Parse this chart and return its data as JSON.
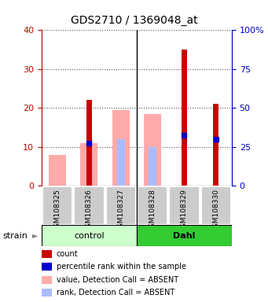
{
  "title": "GDS2710 / 1369048_at",
  "samples": [
    "GSM108325",
    "GSM108326",
    "GSM108327",
    "GSM108328",
    "GSM108329",
    "GSM108330"
  ],
  "ylim_left": [
    0,
    40
  ],
  "ylim_right": [
    0,
    100
  ],
  "yticks_left": [
    0,
    10,
    20,
    30,
    40
  ],
  "yticks_right": [
    0,
    25,
    50,
    75,
    100
  ],
  "ytick_labels_left": [
    "0",
    "10",
    "20",
    "30",
    "40"
  ],
  "ytick_labels_right": [
    "0",
    "25",
    "50",
    "75",
    "100%"
  ],
  "count_color": "#cc0000",
  "value_absent_color": "#ffaaaa",
  "rank_absent_color": "#aabbff",
  "percentile_color": "#0000cc",
  "count_values": [
    0,
    22,
    0,
    0,
    35,
    21
  ],
  "value_absent": [
    8,
    11,
    19.5,
    18.5,
    0,
    0
  ],
  "rank_absent": [
    0,
    0,
    12,
    10,
    0,
    0
  ],
  "percentile_values": [
    0,
    11,
    0,
    0,
    13,
    12
  ],
  "has_count": [
    false,
    true,
    false,
    false,
    true,
    true
  ],
  "has_value_absent": [
    true,
    true,
    true,
    true,
    false,
    false
  ],
  "has_rank_absent": [
    false,
    false,
    true,
    true,
    false,
    false
  ],
  "has_percentile": [
    false,
    true,
    false,
    false,
    true,
    true
  ],
  "left_axis_color": "#cc0000",
  "right_axis_color": "#0000cc",
  "bg_color": "#ffffff",
  "legend_items": [
    {
      "color": "#cc0000",
      "label": "count"
    },
    {
      "color": "#0000cc",
      "label": "percentile rank within the sample"
    },
    {
      "color": "#ffaaaa",
      "label": "value, Detection Call = ABSENT"
    },
    {
      "color": "#aabbff",
      "label": "rank, Detection Call = ABSENT"
    }
  ],
  "strain_label": "strain",
  "control_color": "#ccffcc",
  "dahl_color": "#33cc33",
  "figsize": [
    3.41,
    3.84
  ],
  "dpi": 100
}
